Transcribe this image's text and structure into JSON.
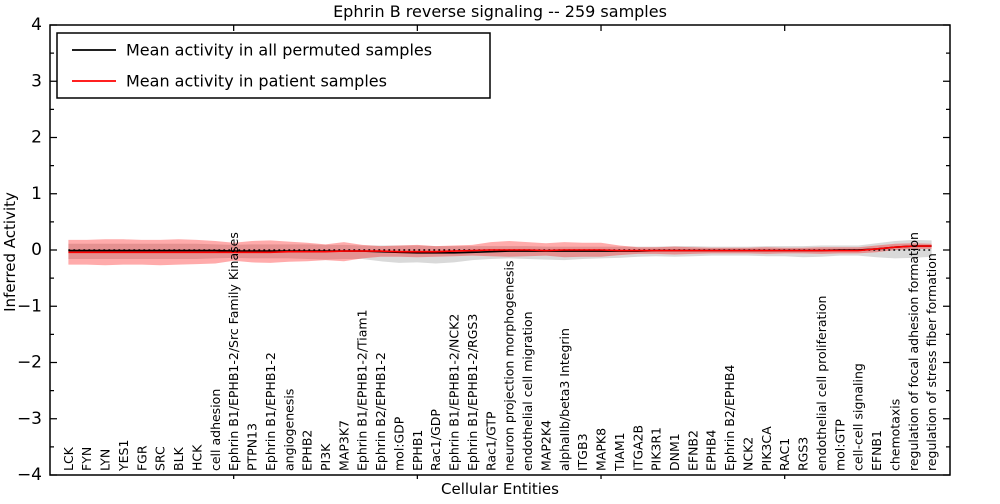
{
  "chart_data": {
    "type": "line",
    "title": "Ephrin B reverse signaling -- 259 samples",
    "xlabel": "Cellular Entities",
    "ylabel": "Inferred Activity",
    "ylim": [
      -4,
      4
    ],
    "yticks_major": [
      -4,
      -3,
      -2,
      -1,
      0,
      1,
      2,
      3,
      4
    ],
    "ytick_minor_step": 0.5,
    "xticks_major_values": [
      10,
      20,
      30,
      40
    ],
    "grid": false,
    "legend_position": "upper-left",
    "zero_line": {
      "value": 0,
      "style": "dotted",
      "color": "#000000"
    },
    "colors": {
      "permuted_line": "#000000",
      "patient_line": "#ff0000",
      "permuted_band": "rgba(0,0,0,0.15)",
      "patient_band": "rgba(255,0,0,0.33)"
    },
    "categories": [
      "LCK",
      "FYN",
      "LYN",
      "YES1",
      "FGR",
      "SRC",
      "BLK",
      "HCK",
      "cell adhesion",
      "Ephrin B1/EPHB1-2/Src Family Kinases",
      "PTPN13",
      "Ephrin B1/EPHB1-2",
      "angiogenesis",
      "EPHB2",
      "PI3K",
      "MAP3K7",
      "Ephrin B1/EPHB1-2/Tiam1",
      "Ephrin B2/EPHB1-2",
      "mol:GDP",
      "EPHB1",
      "Rac1/GDP",
      "Ephrin B1/EPHB1-2/NCK2",
      "Ephrin B1/EPHB1-2/RGS3",
      "Rac1/GTP",
      "neuron projection morphogenesis",
      "endothelial cell migration",
      "MAP2K4",
      "alphaIIb/beta3 Integrin",
      "ITGB3",
      "MAPK8",
      "TIAM1",
      "ITGA2B",
      "PIK3R1",
      "DNM1",
      "EFNB2",
      "EPHB4",
      "Ephrin B2/EPHB4",
      "NCK2",
      "PIK3CA",
      "RAC1",
      "RGS3",
      "endothelial cell proliferation",
      "mol:GTP",
      "cell-cell signaling",
      "EFNB1",
      "chemotaxis",
      "regulation of focal adhesion formation",
      "regulation of stress fiber formation"
    ],
    "series": [
      {
        "name": "Mean activity in all permuted samples",
        "color": "#000000",
        "values": [
          -0.01,
          -0.01,
          -0.01,
          -0.01,
          -0.01,
          -0.01,
          -0.01,
          -0.01,
          -0.01,
          -0.02,
          -0.02,
          -0.02,
          -0.02,
          -0.02,
          -0.02,
          -0.02,
          -0.02,
          -0.03,
          -0.04,
          -0.05,
          -0.05,
          -0.05,
          -0.04,
          -0.03,
          -0.02,
          -0.02,
          -0.02,
          -0.02,
          -0.02,
          -0.02,
          -0.02,
          -0.02,
          -0.01,
          -0.01,
          -0.01,
          -0.01,
          -0.01,
          -0.01,
          -0.01,
          -0.01,
          -0.01,
          -0.01,
          0,
          0,
          0.02,
          0.05,
          0.07,
          0.07
        ],
        "band_upper": [
          0.11,
          0.11,
          0.11,
          0.11,
          0.11,
          0.11,
          0.11,
          0.11,
          0.1,
          0.09,
          0.1,
          0.1,
          0.1,
          0.1,
          0.09,
          0.09,
          0.08,
          0.08,
          0.08,
          0.08,
          0.07,
          0.07,
          0.07,
          0.07,
          0.07,
          0.07,
          0.06,
          0.06,
          0.06,
          0.06,
          0.06,
          0.06,
          0.06,
          0.07,
          0.07,
          0.06,
          0.06,
          0.06,
          0.07,
          0.07,
          0.07,
          0.08,
          0.08,
          0.08,
          0.12,
          0.16,
          0.18,
          0.17
        ],
        "band_lower": [
          -0.16,
          -0.16,
          -0.16,
          -0.16,
          -0.16,
          -0.16,
          -0.16,
          -0.16,
          -0.15,
          -0.14,
          -0.15,
          -0.15,
          -0.15,
          -0.16,
          -0.17,
          -0.16,
          -0.16,
          -0.2,
          -0.23,
          -0.22,
          -0.24,
          -0.22,
          -0.18,
          -0.16,
          -0.15,
          -0.16,
          -0.17,
          -0.18,
          -0.16,
          -0.15,
          -0.14,
          -0.12,
          -0.11,
          -0.12,
          -0.11,
          -0.1,
          -0.1,
          -0.1,
          -0.11,
          -0.11,
          -0.13,
          -0.12,
          -0.1,
          -0.1,
          -0.13,
          -0.15,
          -0.14,
          -0.12
        ]
      },
      {
        "name": "Mean activity in patient samples",
        "color": "#ff0000",
        "values": [
          -0.04,
          -0.04,
          -0.04,
          -0.04,
          -0.04,
          -0.04,
          -0.04,
          -0.04,
          -0.04,
          -0.04,
          -0.04,
          -0.04,
          -0.03,
          -0.03,
          -0.03,
          -0.02,
          -0.02,
          -0.02,
          -0.03,
          -0.03,
          -0.03,
          -0.02,
          -0.01,
          0,
          0,
          0,
          -0.01,
          0,
          0,
          0,
          -0.01,
          -0.01,
          -0.01,
          -0.01,
          -0.01,
          -0.01,
          -0.01,
          -0.01,
          -0.01,
          -0.01,
          -0.01,
          -0.01,
          -0.01,
          -0.01,
          0.02,
          0.05,
          0.07,
          0.07
        ],
        "band_upper": [
          0.18,
          0.18,
          0.19,
          0.19,
          0.18,
          0.18,
          0.19,
          0.18,
          0.16,
          0.13,
          0.16,
          0.17,
          0.15,
          0.13,
          0.1,
          0.14,
          0.09,
          0.07,
          0.08,
          0.09,
          0.07,
          0.08,
          0.09,
          0.14,
          0.16,
          0.14,
          0.12,
          0.14,
          0.13,
          0.13,
          0.08,
          0.05,
          0.05,
          0.06,
          0.05,
          0.04,
          0.04,
          0.04,
          0.05,
          0.04,
          0.04,
          0.05,
          0.05,
          0.05,
          0.08,
          0.11,
          0.12,
          0.11
        ],
        "band_lower": [
          -0.26,
          -0.26,
          -0.27,
          -0.26,
          -0.26,
          -0.27,
          -0.26,
          -0.25,
          -0.24,
          -0.19,
          -0.22,
          -0.23,
          -0.21,
          -0.2,
          -0.18,
          -0.2,
          -0.15,
          -0.12,
          -0.12,
          -0.13,
          -0.12,
          -0.11,
          -0.1,
          -0.11,
          -0.12,
          -0.11,
          -0.1,
          -0.13,
          -0.12,
          -0.12,
          -0.09,
          -0.07,
          -0.07,
          -0.08,
          -0.07,
          -0.06,
          -0.06,
          -0.06,
          -0.07,
          -0.06,
          -0.06,
          -0.07,
          -0.06,
          -0.06,
          -0.04,
          0,
          0.02,
          0.02
        ]
      }
    ]
  }
}
